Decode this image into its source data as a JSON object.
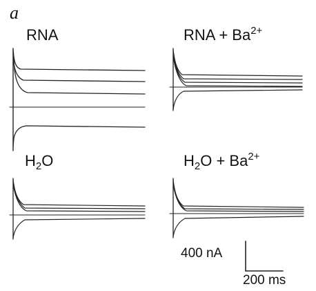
{
  "figure": {
    "panel_letter": "a",
    "panels": [
      {
        "id": "rna",
        "label_main": "RNA",
        "label_sub": "",
        "label_rest": "",
        "label_sup": ""
      },
      {
        "id": "rna-ba",
        "label_main": "RNA + Ba",
        "label_sub": "",
        "label_rest": "",
        "label_sup": "2+"
      },
      {
        "id": "h2o",
        "label_main": "H",
        "label_sub": "2",
        "label_rest": "O",
        "label_sup": ""
      },
      {
        "id": "h2o-ba",
        "label_main": "H",
        "label_sub": "2",
        "label_rest": "O + Ba",
        "label_sup": "2+"
      }
    ],
    "scale_bar": {
      "current": "400 nA",
      "time": "200 ms"
    }
  }
}
